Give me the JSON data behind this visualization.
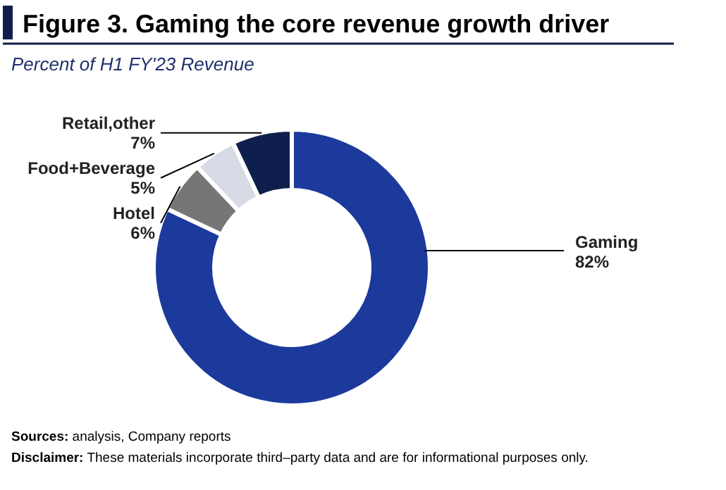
{
  "chart_data": {
    "type": "donut",
    "title": "Figure 3. Gaming the core revenue growth driver",
    "subtitle": "Percent of H1 FY'23 Revenue",
    "categories": [
      "Gaming",
      "Hotel",
      "Food+Beverage",
      "Retail,other"
    ],
    "values": [
      82,
      6,
      5,
      7
    ],
    "value_labels": [
      "82%",
      "6%",
      "5%",
      "7%"
    ],
    "colors": [
      "#1b3a9b",
      "#767676",
      "#d6dbe5",
      "#0e1f4d"
    ],
    "annotations": [
      "Sources: analysis, Company reports",
      "Disclaimer: These materials incorporate third–party data and are for informational purposes only."
    ]
  }
}
